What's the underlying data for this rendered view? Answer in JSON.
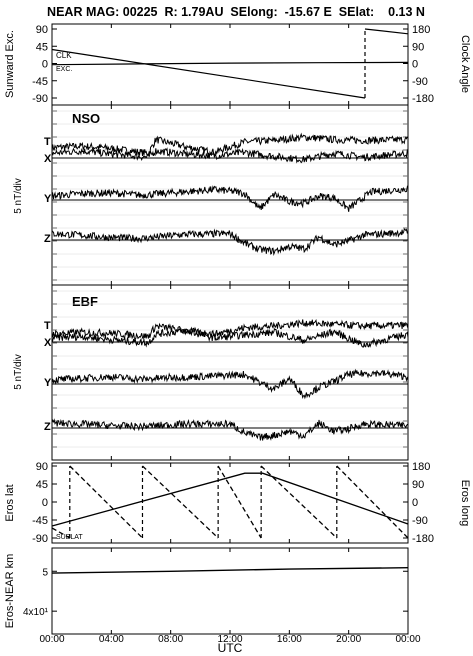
{
  "header": {
    "title": "NEAR MAG: 00225  R: 1.79AU  SElong:  -15.67 E  SElat:    0.13 N"
  },
  "time_axis": {
    "ticks": [
      "00:00",
      "04:00",
      "08:00",
      "12:00",
      "16:00",
      "20:00",
      "00:00"
    ],
    "label": "UTC"
  },
  "chart_data": [
    {
      "type": "line",
      "panel": "sunward-clock",
      "ylabel": "Sunward Exc.",
      "ylabel_right": "Clock Angle",
      "left_ticks": [
        "90",
        "45",
        "0",
        "-45",
        "-90"
      ],
      "left_ylim": [
        -90,
        90
      ],
      "right_ticks": [
        "180",
        "90",
        "0",
        "-90",
        "-180"
      ],
      "right_ylim": [
        -180,
        180
      ],
      "annotations": [
        "CLK",
        "EXC."
      ],
      "x_hours": [
        0,
        21.15,
        21.15,
        24
      ],
      "series": [
        {
          "axis": "right",
          "style": "solid",
          "x": [
            0,
            21.1
          ],
          "values": [
            73,
            -180
          ]
        },
        {
          "axis": "right",
          "style": "dashed",
          "x": [
            21.1,
            21.1
          ],
          "values": [
            -180,
            180
          ]
        },
        {
          "axis": "right",
          "style": "solid",
          "x": [
            21.1,
            24
          ],
          "values": [
            180,
            155
          ]
        },
        {
          "axis": "left",
          "style": "solid",
          "x": [
            0,
            6,
            12,
            18,
            24
          ],
          "values": [
            -3,
            -1,
            1,
            2,
            3
          ]
        }
      ]
    },
    {
      "type": "line",
      "panel": "nso",
      "title": "NSO",
      "ylabel": "5 nT/div",
      "components": [
        "T",
        "X",
        "Y",
        "Z"
      ],
      "baselines": [
        "X",
        "Y",
        "Z"
      ],
      "series": [
        {
          "name": "T",
          "x": [
            0,
            2,
            4,
            6.5,
            7,
            9,
            11,
            11.5,
            13,
            15,
            17,
            19,
            21,
            24
          ],
          "values": [
            1.3,
            1.5,
            1.2,
            0.6,
            2.3,
            1.4,
            0.7,
            1.1,
            2.0,
            2.2,
            2.6,
            2.3,
            2.2,
            2.3
          ]
        },
        {
          "name": "X",
          "x": [
            0,
            2,
            4,
            6.5,
            7,
            9,
            11,
            13,
            15,
            17,
            19,
            21,
            24
          ],
          "values": [
            0.6,
            0.9,
            0.5,
            0.1,
            0.9,
            0.5,
            0.3,
            0.7,
            0.2,
            -0.2,
            0.6,
            0.1,
            0.6
          ]
        },
        {
          "name": "Y",
          "x": [
            0,
            2,
            4,
            6,
            8,
            11,
            12.5,
            13,
            14,
            15,
            16,
            17,
            18,
            19,
            20,
            21.5,
            24
          ],
          "values": [
            0.5,
            0.8,
            0.9,
            0.6,
            0.9,
            1.3,
            1.0,
            0.8,
            -1.1,
            0.7,
            -0.2,
            -0.4,
            0.5,
            0.3,
            -1.1,
            1.0,
            1.4
          ]
        },
        {
          "name": "Z",
          "x": [
            0,
            2,
            4,
            6,
            9,
            12,
            13,
            14,
            15,
            16,
            17,
            18,
            19,
            20,
            21,
            24
          ],
          "values": [
            0.8,
            0.6,
            0.3,
            0.2,
            0.7,
            0.8,
            -0.4,
            -1.2,
            -1.4,
            -0.8,
            -1.1,
            0.4,
            -0.6,
            -0.1,
            0.6,
            1.0
          ]
        }
      ]
    },
    {
      "type": "line",
      "panel": "ebf",
      "title": "EBF",
      "ylabel": "5 nT/div",
      "components": [
        "T",
        "X",
        "Y",
        "Z"
      ],
      "baselines": [
        "X",
        "Y",
        "Z"
      ],
      "series": [
        {
          "name": "T",
          "x": [
            0,
            2,
            4,
            6.5,
            7,
            9,
            11,
            13,
            15,
            17,
            19,
            21,
            24
          ],
          "values": [
            1.0,
            1.2,
            1.1,
            0.7,
            2.0,
            1.4,
            1.0,
            1.8,
            2.0,
            2.4,
            2.2,
            2.0,
            2.1
          ]
        },
        {
          "name": "X",
          "x": [
            0,
            2,
            4,
            6.5,
            7,
            9,
            11,
            13,
            15,
            17,
            19,
            21,
            24
          ],
          "values": [
            0.5,
            0.7,
            0.3,
            -0.1,
            1.0,
            1.4,
            0.5,
            0.9,
            1.2,
            0.2,
            1.3,
            -0.4,
            1.0
          ]
        },
        {
          "name": "Y",
          "x": [
            0,
            2,
            4,
            6,
            8,
            11,
            13,
            14,
            15,
            16,
            17,
            18,
            19,
            20,
            22,
            24
          ],
          "values": [
            0.5,
            0.7,
            0.9,
            0.6,
            0.8,
            1.0,
            1.2,
            0.2,
            -0.6,
            0.7,
            -1.5,
            -0.4,
            0.3,
            1.2,
            1.4,
            0.9
          ]
        },
        {
          "name": "Z",
          "x": [
            0,
            2,
            4,
            6,
            9,
            12,
            13,
            14,
            15,
            16,
            17,
            18,
            19,
            20,
            21,
            24
          ],
          "values": [
            0.6,
            0.5,
            0.3,
            0.2,
            0.5,
            0.5,
            -0.6,
            -1.2,
            -0.9,
            -0.4,
            -1.0,
            0.6,
            -0.4,
            -0.1,
            0.5,
            0.3
          ]
        }
      ]
    },
    {
      "type": "line",
      "panel": "eros",
      "ylabel": "Eros lat",
      "ylabel_right": "Eros long",
      "left_ticks": [
        "90",
        "45",
        "0",
        "-45",
        "-90"
      ],
      "left_ylim": [
        -90,
        90
      ],
      "right_ticks": [
        "180",
        "90",
        "0",
        "-90",
        "-180"
      ],
      "right_ylim": [
        -180,
        180
      ],
      "annotations": [
        "SUBLAT"
      ],
      "lat": {
        "x": [
          0,
          13,
          14.2,
          24
        ],
        "values": [
          -60,
          72,
          72,
          -55
        ]
      },
      "long_segments": [
        {
          "x": [
            0,
            1.2
          ],
          "values": [
            -130,
            -180
          ]
        },
        {
          "x": [
            1.2,
            6.1
          ],
          "values": [
            180,
            -180
          ]
        },
        {
          "x": [
            6.1,
            11.2
          ],
          "values": [
            180,
            -180
          ]
        },
        {
          "x": [
            11.2,
            14.1
          ],
          "values": [
            180,
            -180
          ]
        },
        {
          "x": [
            14.1,
            19.2
          ],
          "values": [
            180,
            -180
          ]
        },
        {
          "x": [
            19.2,
            24
          ],
          "values": [
            180,
            -180
          ]
        }
      ]
    },
    {
      "type": "line",
      "panel": "eros-near-km",
      "ylabel": "Eros-NEAR km",
      "scale": "log",
      "left_ticks": [
        "5",
        "4x10¹"
      ],
      "tick_values": [
        50,
        40
      ],
      "ylim": [
        36,
        56
      ],
      "series": [
        {
          "x": [
            0,
            8,
            16,
            24
          ],
          "values": [
            49.5,
            50.0,
            50.6,
            51.0
          ]
        }
      ]
    }
  ]
}
